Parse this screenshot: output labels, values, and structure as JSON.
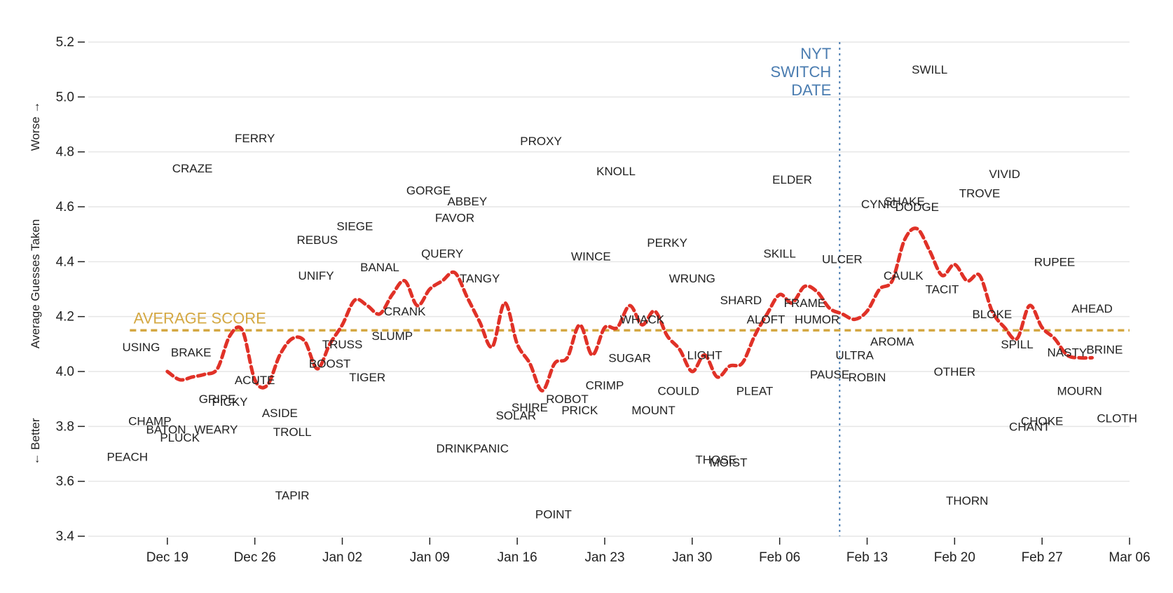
{
  "chart_data": {
    "type": "line",
    "ylabel_parts": [
      "← Better",
      "Average Guesses Taken",
      "Worse →"
    ],
    "ylim": [
      3.4,
      5.2
    ],
    "yticks": [
      "3.4",
      "3.6",
      "3.8",
      "4.0",
      "4.2",
      "4.4",
      "4.6",
      "4.8",
      "5.0",
      "5.2"
    ],
    "x_start": "Dec 12",
    "x_end": "Mar 06",
    "xticks": [
      {
        "day": 7,
        "label": "Dec 19"
      },
      {
        "day": 14,
        "label": "Dec 26"
      },
      {
        "day": 21,
        "label": "Jan 02"
      },
      {
        "day": 28,
        "label": "Jan 09"
      },
      {
        "day": 35,
        "label": "Jan 16"
      },
      {
        "day": 42,
        "label": "Jan 23"
      },
      {
        "day": 49,
        "label": "Jan 30"
      },
      {
        "day": 56,
        "label": "Feb 06"
      },
      {
        "day": 63,
        "label": "Feb 13"
      },
      {
        "day": 70,
        "label": "Feb 20"
      },
      {
        "day": 77,
        "label": "Feb 27"
      },
      {
        "day": 84,
        "label": "Mar 06"
      }
    ],
    "average": {
      "value": 4.15,
      "label": "AVERAGE SCORE",
      "color": "#d4a843"
    },
    "switch": {
      "day": 60.8,
      "label_lines": [
        "NYT",
        "SWITCH",
        "DATE"
      ],
      "color": "#4a7cb0"
    },
    "trend_color": "#e03127",
    "trend": [
      [
        7,
        4.0
      ],
      [
        8,
        3.97
      ],
      [
        9,
        3.98
      ],
      [
        10,
        3.99
      ],
      [
        11,
        4.01
      ],
      [
        12,
        4.13
      ],
      [
        13,
        4.15
      ],
      [
        14,
        3.97
      ],
      [
        15,
        3.95
      ],
      [
        16,
        4.06
      ],
      [
        17,
        4.12
      ],
      [
        18,
        4.11
      ],
      [
        19,
        4.01
      ],
      [
        20,
        4.1
      ],
      [
        21,
        4.17
      ],
      [
        22,
        4.26
      ],
      [
        23,
        4.24
      ],
      [
        24,
        4.21
      ],
      [
        25,
        4.28
      ],
      [
        26,
        4.33
      ],
      [
        27,
        4.24
      ],
      [
        28,
        4.3
      ],
      [
        29,
        4.33
      ],
      [
        30,
        4.36
      ],
      [
        31,
        4.27
      ],
      [
        32,
        4.18
      ],
      [
        33,
        4.09
      ],
      [
        34,
        4.25
      ],
      [
        35,
        4.1
      ],
      [
        36,
        4.03
      ],
      [
        37,
        3.93
      ],
      [
        38,
        4.03
      ],
      [
        39,
        4.05
      ],
      [
        40,
        4.17
      ],
      [
        41,
        4.06
      ],
      [
        42,
        4.16
      ],
      [
        43,
        4.16
      ],
      [
        44,
        4.24
      ],
      [
        45,
        4.17
      ],
      [
        46,
        4.22
      ],
      [
        47,
        4.13
      ],
      [
        48,
        4.08
      ],
      [
        49,
        4.0
      ],
      [
        50,
        4.06
      ],
      [
        51,
        3.98
      ],
      [
        52,
        4.02
      ],
      [
        53,
        4.03
      ],
      [
        54,
        4.13
      ],
      [
        55,
        4.21
      ],
      [
        56,
        4.28
      ],
      [
        57,
        4.25
      ],
      [
        58,
        4.31
      ],
      [
        59,
        4.29
      ],
      [
        60,
        4.23
      ],
      [
        61,
        4.21
      ],
      [
        62,
        4.19
      ],
      [
        63,
        4.22
      ],
      [
        64,
        4.3
      ],
      [
        65,
        4.33
      ],
      [
        66,
        4.48
      ],
      [
        67,
        4.52
      ],
      [
        68,
        4.44
      ],
      [
        69,
        4.35
      ],
      [
        70,
        4.39
      ],
      [
        71,
        4.33
      ],
      [
        72,
        4.35
      ],
      [
        73,
        4.22
      ],
      [
        74,
        4.16
      ],
      [
        75,
        4.12
      ],
      [
        76,
        4.24
      ],
      [
        77,
        4.16
      ],
      [
        78,
        4.12
      ],
      [
        79,
        4.06
      ],
      [
        80,
        4.05
      ],
      [
        81,
        4.05
      ]
    ],
    "words": [
      {
        "word": "USING",
        "day": 4.9,
        "value": 4.09
      },
      {
        "word": "BRAKE",
        "day": 8.9,
        "value": 4.07
      },
      {
        "word": "CHAMP",
        "day": 5.6,
        "value": 3.82
      },
      {
        "word": "BATON",
        "day": 6.9,
        "value": 3.79
      },
      {
        "word": "PLUCK",
        "day": 8.0,
        "value": 3.76
      },
      {
        "word": "PEACH",
        "day": 3.8,
        "value": 3.69
      },
      {
        "word": "CRAZE",
        "day": 9.0,
        "value": 4.74
      },
      {
        "word": "GRIPE",
        "day": 11.0,
        "value": 3.9
      },
      {
        "word": "WEARY",
        "day": 10.9,
        "value": 3.79
      },
      {
        "word": "PICKY",
        "day": 12.0,
        "value": 3.89
      },
      {
        "word": "ACUTE",
        "day": 14.0,
        "value": 3.97
      },
      {
        "word": "FERRY",
        "day": 14.0,
        "value": 4.85
      },
      {
        "word": "ASIDE",
        "day": 16.0,
        "value": 3.85
      },
      {
        "word": "TAPIR",
        "day": 17.0,
        "value": 3.55
      },
      {
        "word": "TROLL",
        "day": 17.0,
        "value": 3.78
      },
      {
        "word": "REBUS",
        "day": 19.0,
        "value": 4.48
      },
      {
        "word": "UNIFY",
        "day": 18.9,
        "value": 4.35
      },
      {
        "word": "BOOST",
        "day": 20.0,
        "value": 4.03
      },
      {
        "word": "TRUSS",
        "day": 21.0,
        "value": 4.1
      },
      {
        "word": "SIEGE",
        "day": 22.0,
        "value": 4.53
      },
      {
        "word": "TIGER",
        "day": 23.0,
        "value": 3.98
      },
      {
        "word": "BANAL",
        "day": 24.0,
        "value": 4.38
      },
      {
        "word": "SLUMP",
        "day": 25.0,
        "value": 4.13
      },
      {
        "word": "CRANK",
        "day": 26.0,
        "value": 4.22
      },
      {
        "word": "GORGE",
        "day": 27.9,
        "value": 4.66
      },
      {
        "word": "QUERY",
        "day": 29.0,
        "value": 4.43
      },
      {
        "word": "FAVOR",
        "day": 30.0,
        "value": 4.56
      },
      {
        "word": "ABBEY",
        "day": 31.0,
        "value": 4.62
      },
      {
        "word": "DRINK",
        "day": 30.0,
        "value": 3.72
      },
      {
        "word": "TANGY",
        "day": 32.0,
        "value": 4.34
      },
      {
        "word": "PANIC",
        "day": 32.9,
        "value": 3.72
      },
      {
        "word": "SOLAR",
        "day": 34.9,
        "value": 3.84
      },
      {
        "word": "SHIRE",
        "day": 36.0,
        "value": 3.87
      },
      {
        "word": "PROXY",
        "day": 36.9,
        "value": 4.84
      },
      {
        "word": "POINT",
        "day": 37.9,
        "value": 3.48
      },
      {
        "word": "ROBOT",
        "day": 39.0,
        "value": 3.9
      },
      {
        "word": "PRICK",
        "day": 40.0,
        "value": 3.86
      },
      {
        "word": "WINCE",
        "day": 40.9,
        "value": 4.42
      },
      {
        "word": "CRIMP",
        "day": 42.0,
        "value": 3.95
      },
      {
        "word": "KNOLL",
        "day": 42.9,
        "value": 4.73
      },
      {
        "word": "SUGAR",
        "day": 44.0,
        "value": 4.05
      },
      {
        "word": "WHACK",
        "day": 45.0,
        "value": 4.19
      },
      {
        "word": "MOUNT",
        "day": 45.9,
        "value": 3.86
      },
      {
        "word": "PERKY",
        "day": 47.0,
        "value": 4.47
      },
      {
        "word": "COULD",
        "day": 47.9,
        "value": 3.93
      },
      {
        "word": "WRUNG",
        "day": 49.0,
        "value": 4.34
      },
      {
        "word": "LIGHT",
        "day": 50.0,
        "value": 4.06
      },
      {
        "word": "THOSE",
        "day": 50.9,
        "value": 3.68
      },
      {
        "word": "MOIST",
        "day": 51.9,
        "value": 3.67
      },
      {
        "word": "SHARD",
        "day": 52.9,
        "value": 4.26
      },
      {
        "word": "PLEAT",
        "day": 54.0,
        "value": 3.93
      },
      {
        "word": "ALOFT",
        "day": 54.9,
        "value": 4.19
      },
      {
        "word": "SKILL",
        "day": 56.0,
        "value": 4.43
      },
      {
        "word": "ELDER",
        "day": 57.0,
        "value": 4.7
      },
      {
        "word": "FRAME",
        "day": 58.0,
        "value": 4.25
      },
      {
        "word": "HUMOR",
        "day": 59.0,
        "value": 4.19
      },
      {
        "word": "PAUSE",
        "day": 60.0,
        "value": 3.99
      },
      {
        "word": "ULCER",
        "day": 61.0,
        "value": 4.41
      },
      {
        "word": "ULTRA",
        "day": 62.0,
        "value": 4.06
      },
      {
        "word": "ROBIN",
        "day": 63.0,
        "value": 3.98
      },
      {
        "word": "CYNIC",
        "day": 64.0,
        "value": 4.61
      },
      {
        "word": "AROMA",
        "day": 65.0,
        "value": 4.11
      },
      {
        "word": "SHAKE",
        "day": 66.0,
        "value": 4.62
      },
      {
        "word": "CAULK",
        "day": 65.9,
        "value": 4.35
      },
      {
        "word": "DODGE",
        "day": 67.0,
        "value": 4.6
      },
      {
        "word": "SWILL",
        "day": 68.0,
        "value": 5.1
      },
      {
        "word": "TACIT",
        "day": 69.0,
        "value": 4.3
      },
      {
        "word": "OTHER",
        "day": 70.0,
        "value": 4.0
      },
      {
        "word": "THORN",
        "day": 71.0,
        "value": 3.53
      },
      {
        "word": "TROVE",
        "day": 72.0,
        "value": 4.65
      },
      {
        "word": "BLOKE",
        "day": 73.0,
        "value": 4.21
      },
      {
        "word": "VIVID",
        "day": 74.0,
        "value": 4.72
      },
      {
        "word": "SPILL",
        "day": 75.0,
        "value": 4.1
      },
      {
        "word": "CHANT",
        "day": 76.0,
        "value": 3.8
      },
      {
        "word": "CHOKE",
        "day": 77.0,
        "value": 3.82
      },
      {
        "word": "RUPEE",
        "day": 78.0,
        "value": 4.4
      },
      {
        "word": "NASTY",
        "day": 79.0,
        "value": 4.07
      },
      {
        "word": "MOURN",
        "day": 80.0,
        "value": 3.93
      },
      {
        "word": "AHEAD",
        "day": 81.0,
        "value": 4.23
      },
      {
        "word": "BRINE",
        "day": 82.0,
        "value": 4.08
      },
      {
        "word": "CLOTH",
        "day": 83.0,
        "value": 3.83
      }
    ]
  }
}
